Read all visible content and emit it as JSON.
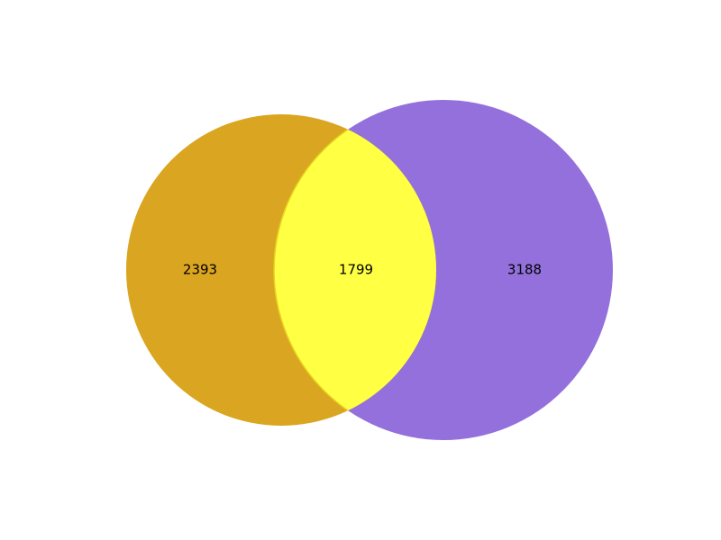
{
  "venn": {
    "sets": [
      {
        "id": "A",
        "color": "#DAA520"
      },
      {
        "id": "B",
        "color": "#9370DB"
      }
    ],
    "overlap_color": "#FFFF44",
    "regions": {
      "only_a": "2393",
      "both": "1799",
      "only_b": "3188"
    }
  }
}
